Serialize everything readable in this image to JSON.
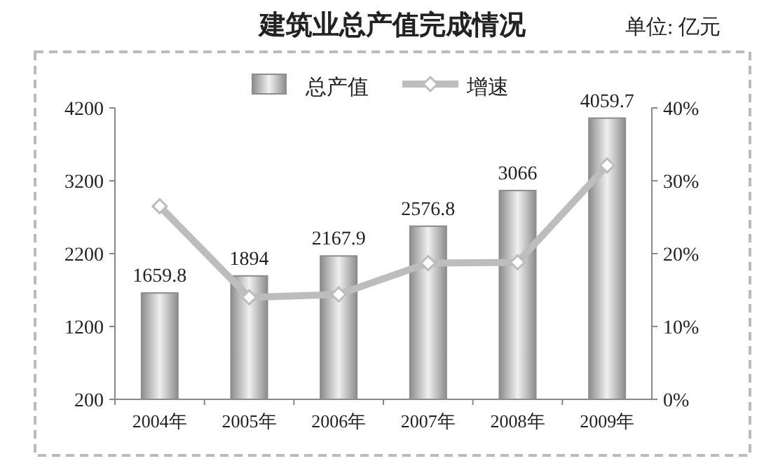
{
  "chart_data": {
    "type": "bar",
    "title": "建筑业总产值完成情况",
    "annotations": [
      "单位: 亿元"
    ],
    "categories": [
      "2004年",
      "2005年",
      "2006年",
      "2007年",
      "2008年",
      "2009年"
    ],
    "series": [
      {
        "name": "总产值",
        "color": "#8c8c8c",
        "values": [
          1659.8,
          1894,
          2167.9,
          2576.8,
          3066,
          4059.7
        ],
        "value_labels": [
          "1659.8",
          "1894",
          "2167.9",
          "2576.8",
          "3066",
          "4059.7"
        ]
      },
      {
        "name": "增速",
        "type": "line",
        "axis": "y2",
        "color": "#bdbdbd",
        "marker": "diamond",
        "values": [
          26.5,
          14.0,
          14.4,
          18.7,
          18.8,
          32.1
        ]
      }
    ],
    "ylim": [
      200,
      4200
    ],
    "yticks": [
      200,
      1200,
      2200,
      3200,
      4200
    ],
    "y2lim": [
      0,
      40
    ],
    "y2ticks": [
      {
        "value": 0,
        "label": "0%"
      },
      {
        "value": 10,
        "label": "10%"
      },
      {
        "value": 20,
        "label": "20%"
      },
      {
        "value": 30,
        "label": "30%"
      },
      {
        "value": 40,
        "label": "40%"
      }
    ],
    "legend": "top"
  }
}
